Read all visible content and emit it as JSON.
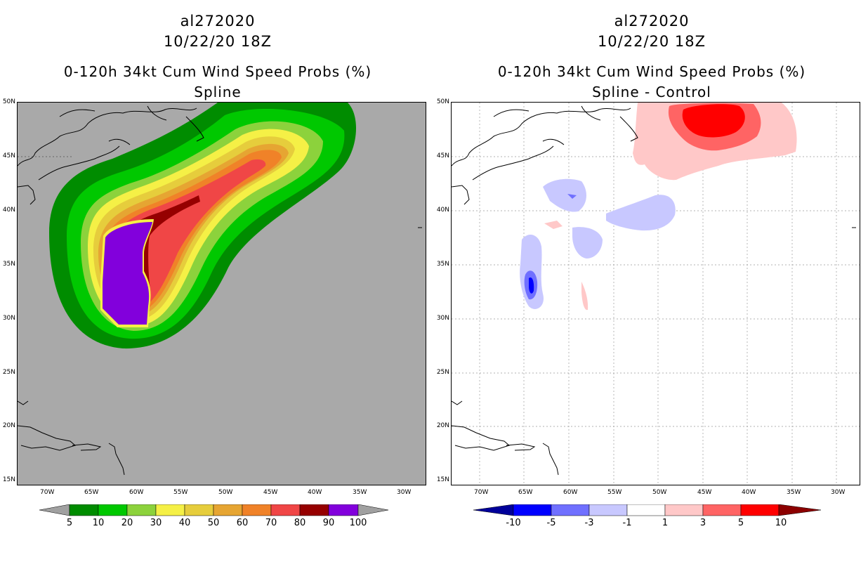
{
  "left_panel": {
    "storm_id": "al272020",
    "datetime": "10/22/20 18Z",
    "product": "0-120h 34kt Cum Wind Speed Probs (%)",
    "subtitle": "Spline"
  },
  "right_panel": {
    "storm_id": "al272020",
    "datetime": "10/22/20 18Z",
    "product": "0-120h 34kt Cum Wind Speed Probs (%)",
    "subtitle": "Spline - Control"
  },
  "axes": {
    "lon_labels": [
      "70W",
      "65W",
      "60W",
      "55W",
      "50W",
      "45W",
      "40W",
      "35W",
      "30W"
    ],
    "lat_labels": [
      "50N",
      "45N",
      "40N",
      "35N",
      "30N",
      "25N",
      "20N",
      "15N"
    ]
  },
  "left_colorbar": {
    "labels": [
      "5",
      "10",
      "20",
      "30",
      "40",
      "50",
      "60",
      "70",
      "80",
      "90",
      "100"
    ],
    "colors": [
      "#008c00",
      "#00c800",
      "#8cd23c",
      "#f5f046",
      "#e6cd3c",
      "#e6a532",
      "#f08228",
      "#f04646",
      "#960000",
      "#8200dc"
    ],
    "arrow_color": "#a0a0a0"
  },
  "right_colorbar": {
    "labels": [
      "-10",
      "-5",
      "-3",
      "-1",
      "1",
      "3",
      "5",
      "10"
    ],
    "colors": [
      "#0000ff",
      "#7070ff",
      "#c8c8ff",
      "#ffffff",
      "#ffc8c8",
      "#ff6464",
      "#ff0000"
    ],
    "low_arrow_color": "#00009a",
    "high_arrow_color": "#8c0000"
  },
  "colors": {
    "map_background_left": "#a9a9a9",
    "map_background_right": "#ffffff"
  }
}
